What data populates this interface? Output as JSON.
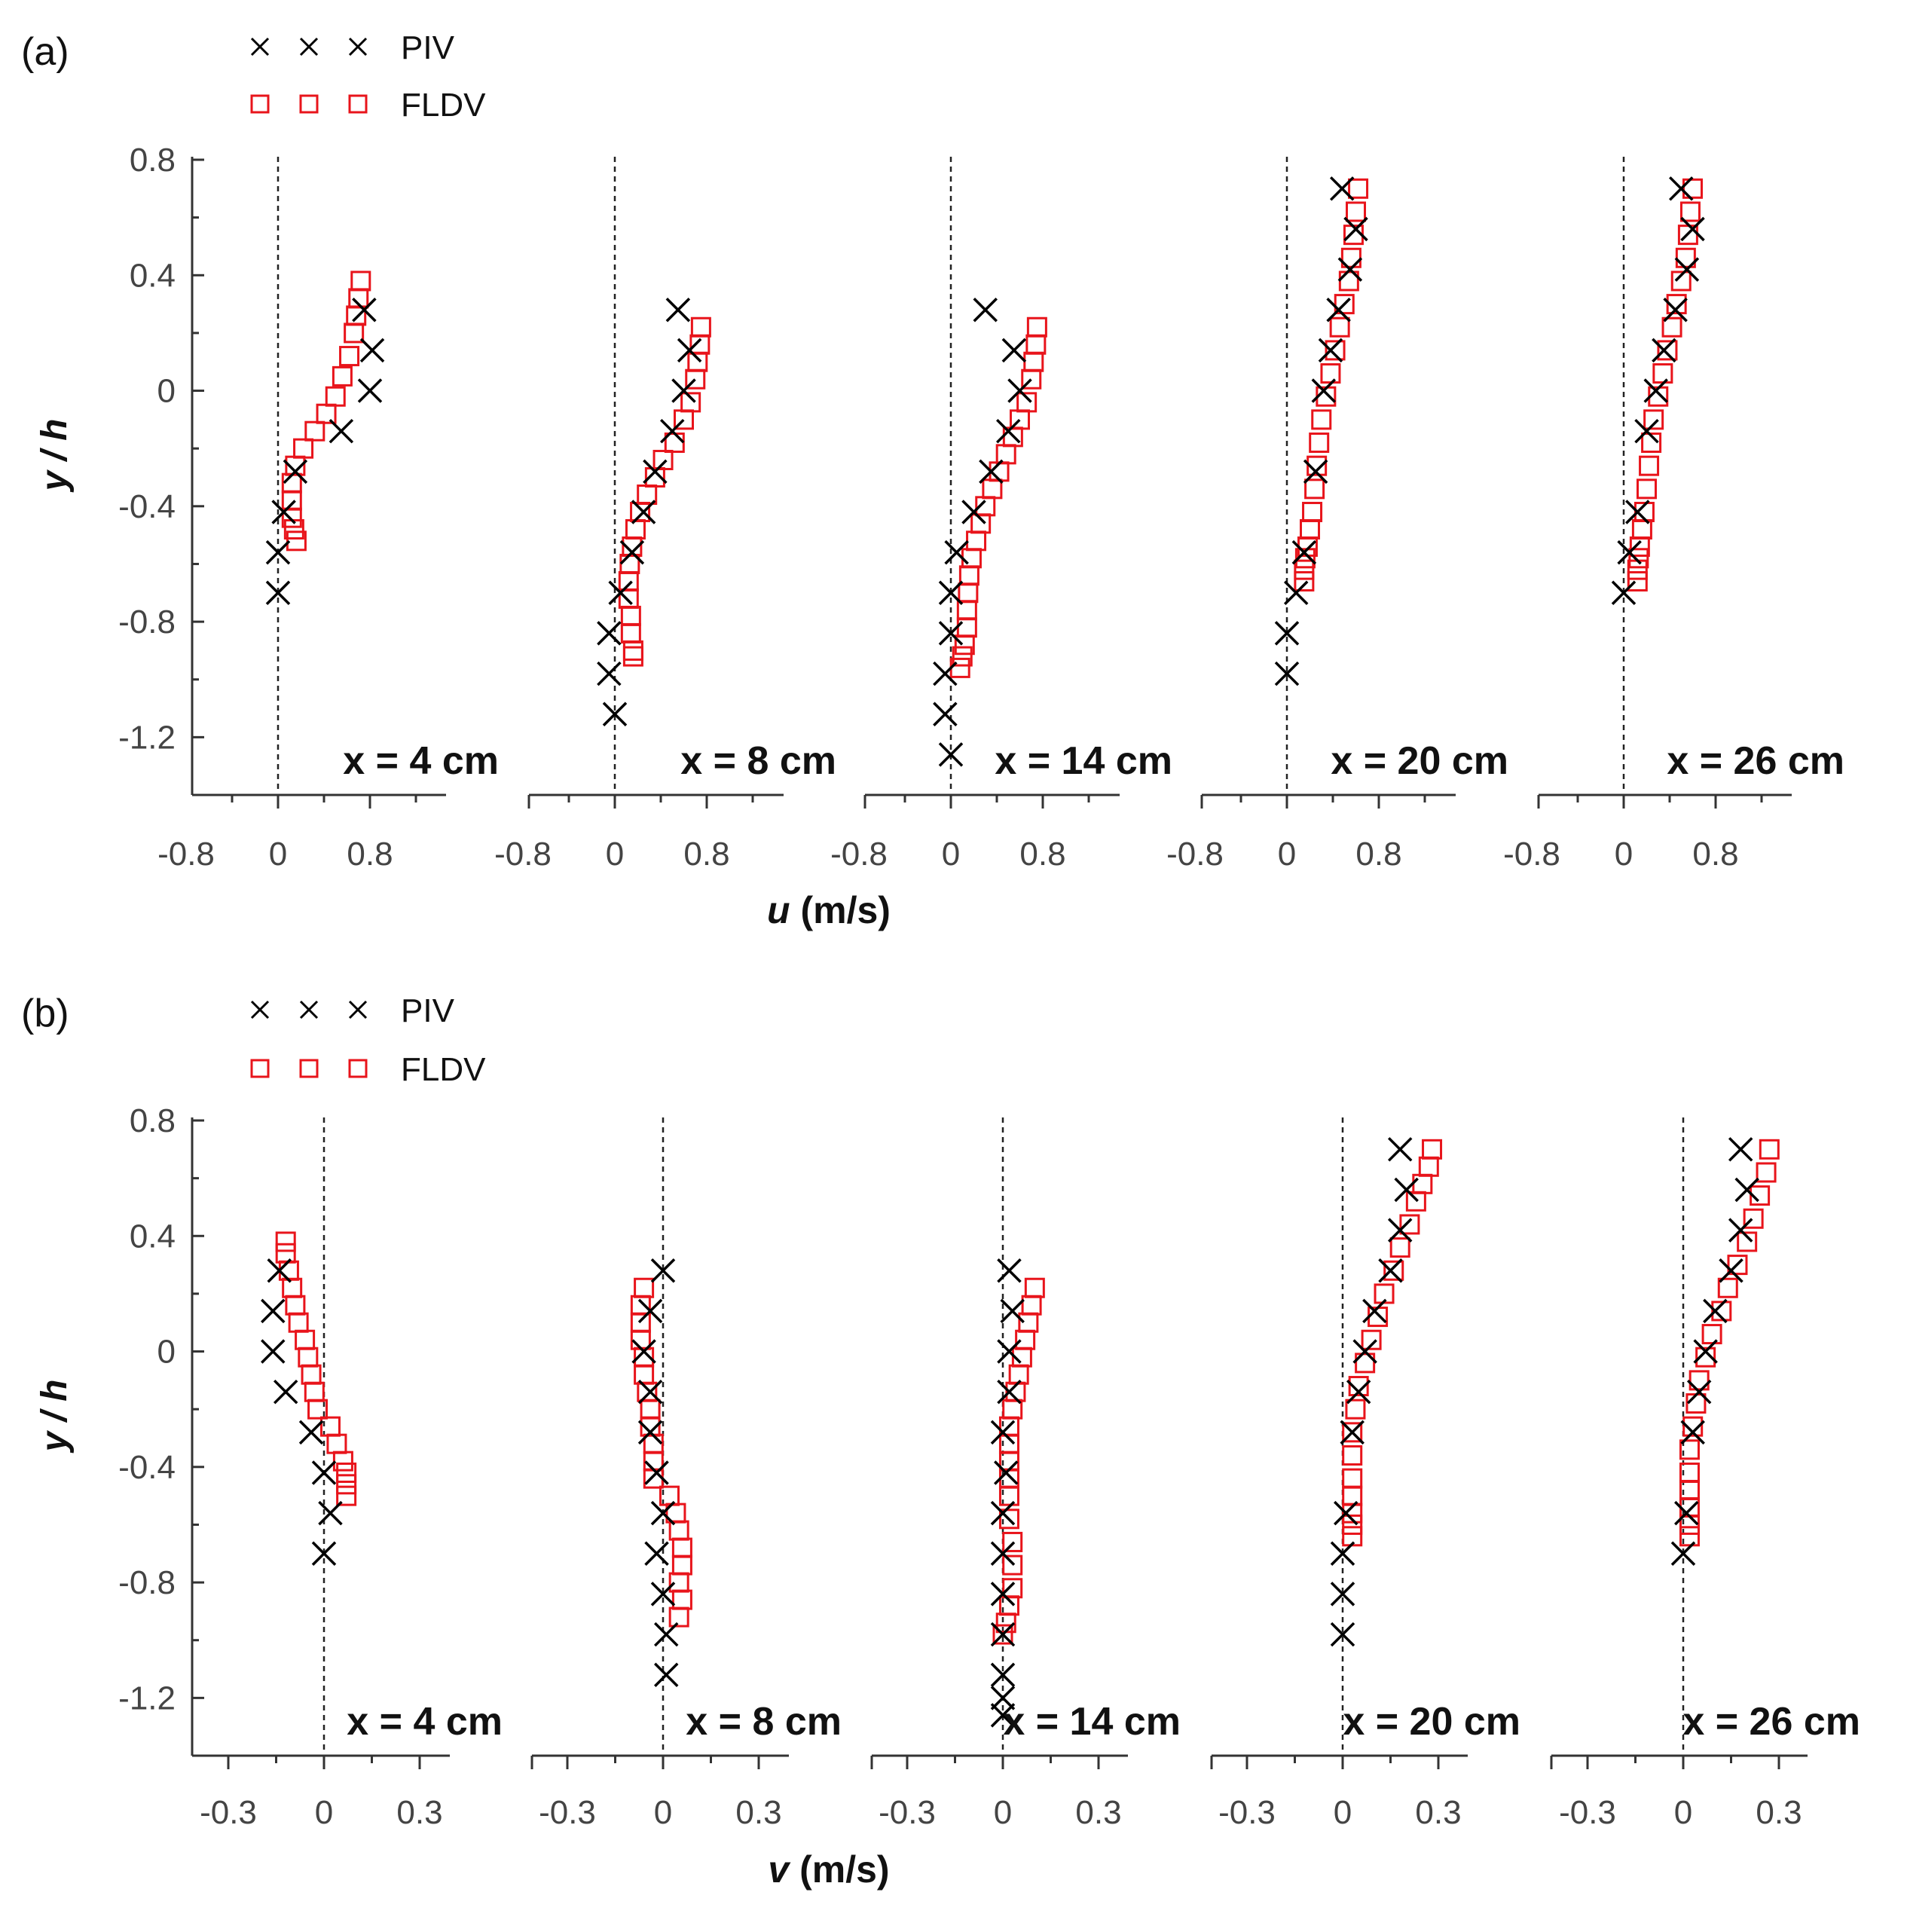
{
  "figure": {
    "colors": {
      "piv": "#000000",
      "fldv": "#e8141b",
      "axis": "#333333"
    }
  },
  "chart_data": [
    {
      "panel": "(a)",
      "type": "scatter",
      "ylabel": "y / h",
      "xlabel": "u (m/s)",
      "yticks": [
        "0.8",
        "0.4",
        "0",
        "-0.4",
        "-0.8",
        "-1.2"
      ],
      "ylim": [
        -1.4,
        0.8
      ],
      "xlim": [
        -0.8,
        1.3
      ],
      "xticks": [
        "-0.8",
        "0",
        "0.8"
      ],
      "legend": {
        "position": "top-left",
        "entries": [
          {
            "name": "PIV",
            "marker": "x"
          },
          {
            "name": "FLDV",
            "marker": "square"
          }
        ]
      },
      "subplots": [
        {
          "title": "x = 4 cm",
          "piv": {
            "x": [
              0.75,
              0.82,
              0.8,
              0.55,
              0.15,
              0.05,
              0.0,
              0.0
            ],
            "y": [
              0.28,
              0.14,
              0.0,
              -0.14,
              -0.28,
              -0.42,
              -0.56,
              -0.7
            ]
          },
          "fldv": {
            "x": [
              0.72,
              0.7,
              0.68,
              0.66,
              0.62,
              0.56,
              0.5,
              0.42,
              0.32,
              0.22,
              0.15,
              0.12,
              0.12,
              0.12,
              0.14,
              0.16
            ],
            "y": [
              0.38,
              0.32,
              0.26,
              0.2,
              0.12,
              0.05,
              -0.02,
              -0.08,
              -0.14,
              -0.2,
              -0.26,
              -0.32,
              -0.38,
              -0.44,
              -0.48,
              -0.52
            ]
          }
        },
        {
          "title": "x = 8 cm",
          "piv": {
            "x": [
              0.55,
              0.65,
              0.6,
              0.5,
              0.35,
              0.25,
              0.15,
              0.05,
              -0.05,
              -0.05,
              0.0
            ],
            "y": [
              0.28,
              0.14,
              0.0,
              -0.14,
              -0.28,
              -0.42,
              -0.56,
              -0.7,
              -0.84,
              -0.98,
              -1.12
            ]
          },
          "fldv": {
            "x": [
              0.75,
              0.74,
              0.72,
              0.7,
              0.66,
              0.6,
              0.52,
              0.42,
              0.35,
              0.28,
              0.22,
              0.18,
              0.15,
              0.13,
              0.12,
              0.12,
              0.14,
              0.14,
              0.16,
              0.16
            ],
            "y": [
              0.22,
              0.16,
              0.1,
              0.04,
              -0.04,
              -0.1,
              -0.18,
              -0.24,
              -0.3,
              -0.36,
              -0.42,
              -0.48,
              -0.54,
              -0.6,
              -0.66,
              -0.72,
              -0.78,
              -0.84,
              -0.9,
              -0.92
            ]
          }
        },
        {
          "title": "x = 14 cm",
          "piv": {
            "x": [
              0.3,
              0.55,
              0.6,
              0.5,
              0.35,
              0.2,
              0.05,
              0.0,
              0.0,
              -0.05,
              -0.05,
              0.0
            ],
            "y": [
              0.28,
              0.14,
              0.0,
              -0.14,
              -0.28,
              -0.42,
              -0.56,
              -0.7,
              -0.84,
              -0.98,
              -1.12,
              -1.26
            ]
          },
          "fldv": {
            "x": [
              0.75,
              0.74,
              0.72,
              0.7,
              0.66,
              0.6,
              0.54,
              0.48,
              0.42,
              0.36,
              0.3,
              0.26,
              0.22,
              0.18,
              0.16,
              0.15,
              0.14,
              0.14,
              0.12,
              0.1,
              0.08
            ],
            "y": [
              0.22,
              0.16,
              0.1,
              0.04,
              -0.04,
              -0.1,
              -0.16,
              -0.22,
              -0.28,
              -0.34,
              -0.4,
              -0.46,
              -0.52,
              -0.58,
              -0.64,
              -0.7,
              -0.76,
              -0.82,
              -0.88,
              -0.92,
              -0.96
            ]
          }
        },
        {
          "title": "x = 20 cm",
          "piv": {
            "x": [
              0.48,
              0.6,
              0.55,
              0.45,
              0.38,
              0.32,
              0.25,
              0.15,
              0.08,
              0.0,
              0.0
            ],
            "y": [
              0.7,
              0.56,
              0.42,
              0.28,
              0.14,
              0.0,
              -0.28,
              -0.56,
              -0.7,
              -0.84,
              -0.98
            ]
          },
          "fldv": {
            "x": [
              0.62,
              0.6,
              0.58,
              0.56,
              0.54,
              0.5,
              0.46,
              0.42,
              0.38,
              0.34,
              0.3,
              0.28,
              0.26,
              0.24,
              0.22,
              0.2,
              0.18,
              0.16,
              0.15,
              0.15
            ],
            "y": [
              0.7,
              0.62,
              0.54,
              0.46,
              0.38,
              0.3,
              0.22,
              0.14,
              0.06,
              -0.02,
              -0.1,
              -0.18,
              -0.26,
              -0.34,
              -0.42,
              -0.48,
              -0.54,
              -0.58,
              -0.62,
              -0.66
            ]
          }
        },
        {
          "title": "x = 26 cm",
          "piv": {
            "x": [
              0.5,
              0.6,
              0.55,
              0.45,
              0.35,
              0.28,
              0.2,
              0.12,
              0.05,
              0.0
            ],
            "y": [
              0.7,
              0.56,
              0.42,
              0.28,
              0.14,
              0.0,
              -0.14,
              -0.42,
              -0.56,
              -0.7
            ]
          },
          "fldv": {
            "x": [
              0.6,
              0.58,
              0.56,
              0.54,
              0.5,
              0.46,
              0.42,
              0.38,
              0.34,
              0.3,
              0.26,
              0.24,
              0.22,
              0.2,
              0.18,
              0.16,
              0.14,
              0.13,
              0.12,
              0.12
            ],
            "y": [
              0.7,
              0.62,
              0.54,
              0.46,
              0.38,
              0.3,
              0.22,
              0.14,
              0.06,
              -0.02,
              -0.1,
              -0.18,
              -0.26,
              -0.34,
              -0.42,
              -0.48,
              -0.54,
              -0.58,
              -0.62,
              -0.66
            ]
          }
        }
      ]
    },
    {
      "panel": "(b)",
      "type": "scatter",
      "ylabel": "y / h",
      "xlabel": "v (m/s)",
      "yticks": [
        "0.8",
        "0.4",
        "0",
        "-0.4",
        "-0.8",
        "-1.2"
      ],
      "ylim": [
        -1.4,
        0.8
      ],
      "xlim": [
        -0.4,
        0.4
      ],
      "xticks": [
        "-0.3",
        "0",
        "0.3"
      ],
      "legend": {
        "position": "top-left",
        "entries": [
          {
            "name": "PIV",
            "marker": "x"
          },
          {
            "name": "FLDV",
            "marker": "square"
          }
        ]
      },
      "subplots": [
        {
          "title": "x = 4 cm",
          "piv": {
            "x": [
              -0.14,
              -0.16,
              -0.16,
              -0.12,
              -0.04,
              0.0,
              0.02,
              0.0
            ],
            "y": [
              0.28,
              0.14,
              0.0,
              -0.14,
              -0.28,
              -0.42,
              -0.56,
              -0.7
            ]
          },
          "fldv": {
            "x": [
              -0.12,
              -0.12,
              -0.11,
              -0.1,
              -0.09,
              -0.08,
              -0.06,
              -0.05,
              -0.04,
              -0.03,
              -0.02,
              0.02,
              0.04,
              0.06,
              0.07,
              0.07,
              0.07
            ],
            "y": [
              0.38,
              0.34,
              0.28,
              0.22,
              0.16,
              0.1,
              0.04,
              -0.02,
              -0.08,
              -0.14,
              -0.2,
              -0.26,
              -0.32,
              -0.38,
              -0.42,
              -0.46,
              -0.5
            ]
          }
        },
        {
          "title": "x = 8 cm",
          "piv": {
            "x": [
              0.0,
              -0.04,
              -0.06,
              -0.04,
              -0.04,
              -0.02,
              0.0,
              -0.02,
              0.0,
              0.01,
              0.01
            ],
            "y": [
              0.28,
              0.14,
              0.0,
              -0.14,
              -0.28,
              -0.42,
              -0.56,
              -0.7,
              -0.84,
              -0.98,
              -1.12
            ]
          },
          "fldv": {
            "x": [
              -0.06,
              -0.07,
              -0.07,
              -0.07,
              -0.06,
              -0.06,
              -0.05,
              -0.04,
              -0.04,
              -0.03,
              -0.03,
              -0.03,
              0.02,
              0.04,
              0.05,
              0.06,
              0.06,
              0.05,
              0.06,
              0.05
            ],
            "y": [
              0.22,
              0.16,
              0.1,
              0.04,
              -0.02,
              -0.08,
              -0.14,
              -0.2,
              -0.26,
              -0.32,
              -0.38,
              -0.44,
              -0.5,
              -0.56,
              -0.62,
              -0.68,
              -0.74,
              -0.8,
              -0.86,
              -0.92
            ]
          }
        },
        {
          "title": "x = 14 cm",
          "piv": {
            "x": [
              0.02,
              0.03,
              0.02,
              0.02,
              0.0,
              0.01,
              0.0,
              0.0,
              0.0,
              0.0,
              0.0,
              0.0,
              0.0
            ],
            "y": [
              0.28,
              0.14,
              0.0,
              -0.14,
              -0.28,
              -0.42,
              -0.56,
              -0.7,
              -0.84,
              -0.98,
              -1.12,
              -1.2,
              -1.26
            ]
          },
          "fldv": {
            "x": [
              0.1,
              0.09,
              0.08,
              0.07,
              0.06,
              0.05,
              0.04,
              0.03,
              0.02,
              0.02,
              0.02,
              0.02,
              0.02,
              0.02,
              0.03,
              0.03,
              0.03,
              0.02,
              0.01,
              0.0
            ],
            "y": [
              0.22,
              0.16,
              0.1,
              0.04,
              -0.02,
              -0.08,
              -0.14,
              -0.2,
              -0.26,
              -0.32,
              -0.38,
              -0.44,
              -0.5,
              -0.58,
              -0.66,
              -0.74,
              -0.82,
              -0.88,
              -0.94,
              -0.98
            ]
          }
        },
        {
          "title": "x = 20 cm",
          "piv": {
            "x": [
              0.18,
              0.2,
              0.18,
              0.15,
              0.1,
              0.07,
              0.05,
              0.03,
              0.01,
              0.0,
              0.0,
              0.0
            ],
            "y": [
              0.7,
              0.56,
              0.42,
              0.28,
              0.14,
              0.0,
              -0.14,
              -0.28,
              -0.56,
              -0.7,
              -0.84,
              -0.98
            ]
          },
          "fldv": {
            "x": [
              0.28,
              0.27,
              0.25,
              0.23,
              0.21,
              0.18,
              0.16,
              0.13,
              0.11,
              0.09,
              0.07,
              0.05,
              0.04,
              0.03,
              0.03,
              0.03,
              0.03,
              0.03,
              0.03,
              0.03
            ],
            "y": [
              0.7,
              0.64,
              0.58,
              0.52,
              0.44,
              0.36,
              0.28,
              0.2,
              0.12,
              0.04,
              -0.04,
              -0.12,
              -0.2,
              -0.28,
              -0.36,
              -0.44,
              -0.5,
              -0.56,
              -0.6,
              -0.64
            ]
          }
        },
        {
          "title": "x = 26 cm",
          "piv": {
            "x": [
              0.18,
              0.2,
              0.18,
              0.15,
              0.1,
              0.07,
              0.05,
              0.03,
              0.01,
              0.0
            ],
            "y": [
              0.7,
              0.56,
              0.42,
              0.28,
              0.14,
              0.0,
              -0.14,
              -0.28,
              -0.56,
              -0.7
            ]
          },
          "fldv": {
            "x": [
              0.27,
              0.26,
              0.24,
              0.22,
              0.2,
              0.17,
              0.14,
              0.12,
              0.09,
              0.07,
              0.05,
              0.04,
              0.03,
              0.02,
              0.02,
              0.02,
              0.02,
              0.02,
              0.02
            ],
            "y": [
              0.7,
              0.62,
              0.54,
              0.46,
              0.38,
              0.3,
              0.22,
              0.14,
              0.06,
              -0.02,
              -0.1,
              -0.18,
              -0.26,
              -0.34,
              -0.42,
              -0.48,
              -0.54,
              -0.6,
              -0.64
            ]
          }
        }
      ]
    }
  ]
}
